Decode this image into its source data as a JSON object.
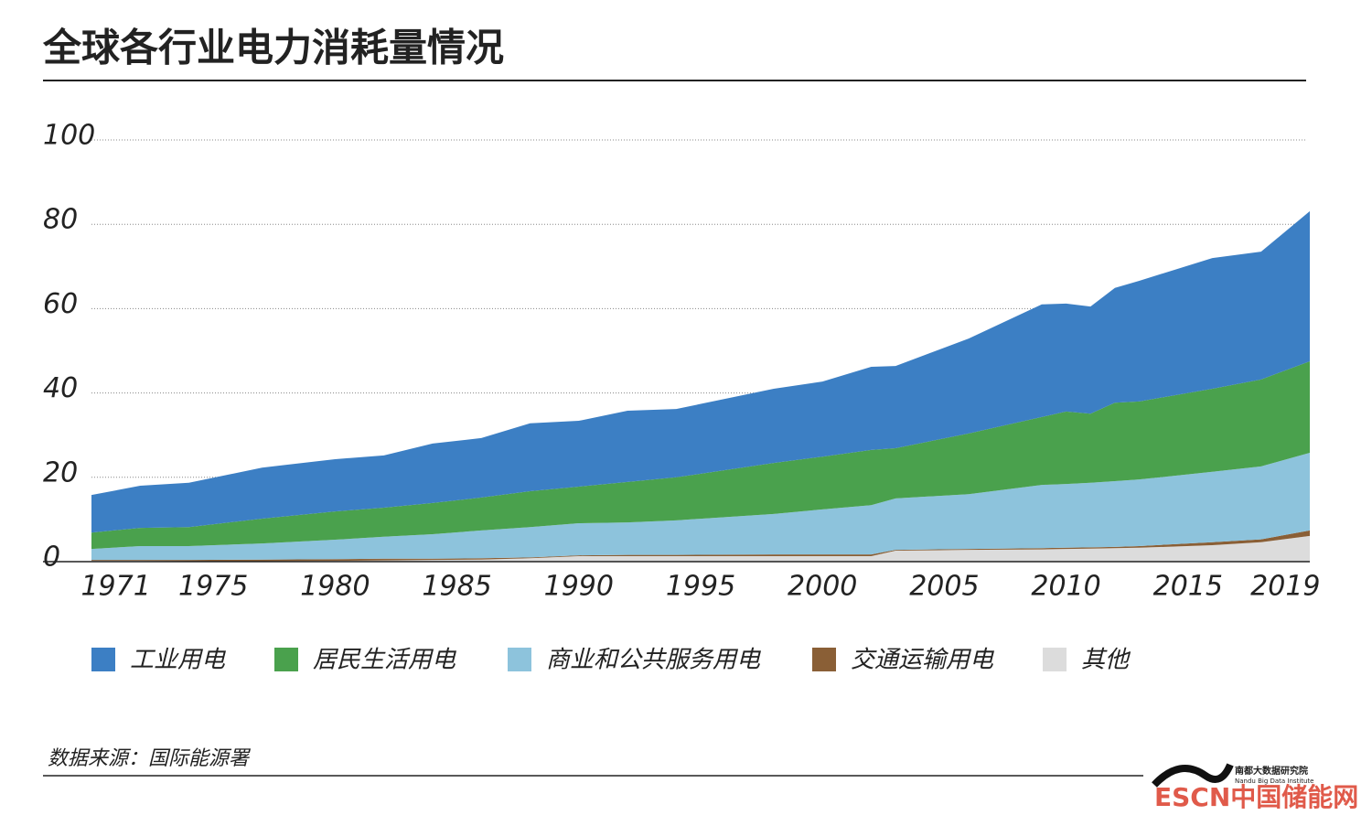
{
  "chart_data": {
    "type": "stacked-area",
    "title": "全球各行业电力消耗量情况",
    "x": [
      1970,
      1972,
      1974,
      1977,
      1980,
      1982,
      1984,
      1986,
      1988,
      1990,
      1992,
      1994,
      1998,
      2000,
      2002,
      2003,
      2006,
      2009,
      2010,
      2011,
      2012,
      2013,
      2016,
      2018,
      2020
    ],
    "series": [
      {
        "name": "工业用电",
        "color": "#3c7fc4",
        "values": [
          8.9,
          10.0,
          10.5,
          12.1,
          12.4,
          12.4,
          14.1,
          14.1,
          16.1,
          15.6,
          16.9,
          16.2,
          17.6,
          17.8,
          19.7,
          19.5,
          22.5,
          26.7,
          25.6,
          25.4,
          27.2,
          28.6,
          31.0,
          30.3,
          35.6
        ]
      },
      {
        "name": "居民生活用电",
        "color": "#4aa14d",
        "values": [
          3.9,
          4.3,
          4.5,
          5.9,
          6.7,
          6.9,
          7.4,
          7.8,
          8.5,
          8.7,
          9.6,
          10.2,
          12.1,
          12.5,
          13.1,
          11.9,
          14.4,
          16.1,
          17.2,
          16.4,
          18.6,
          18.5,
          19.7,
          20.6,
          21.7
        ]
      },
      {
        "name": "商业和公共服务用电",
        "color": "#8dc3dc",
        "values": [
          2.6,
          3.3,
          3.3,
          3.8,
          4.6,
          5.2,
          5.8,
          6.6,
          7.2,
          7.6,
          7.7,
          8.2,
          9.6,
          10.7,
          11.7,
          12.2,
          13.0,
          15.0,
          15.1,
          15.3,
          15.6,
          15.8,
          16.7,
          17.3,
          18.4
        ]
      },
      {
        "name": "交通运输用电",
        "color": "#8a5f36",
        "values": [
          0.2,
          0.2,
          0.3,
          0.4,
          0.4,
          0.4,
          0.3,
          0.3,
          0.2,
          0.2,
          0.3,
          0.3,
          0.4,
          0.4,
          0.4,
          0.2,
          0.2,
          0.3,
          0.3,
          0.3,
          0.3,
          0.4,
          0.7,
          0.7,
          1.3
        ]
      },
      {
        "name": "其他",
        "color": "#dcdcdc",
        "values": [
          0.2,
          0.2,
          0.1,
          0.1,
          0.2,
          0.3,
          0.4,
          0.5,
          0.8,
          1.3,
          1.3,
          1.3,
          1.3,
          1.3,
          1.3,
          2.6,
          2.8,
          2.9,
          3.0,
          3.1,
          3.2,
          3.3,
          3.9,
          4.6,
          6.1
        ]
      }
    ],
    "xlim": [
      1970,
      2020
    ],
    "xticks": [
      1971,
      1975,
      1980,
      1985,
      1990,
      1995,
      2000,
      2005,
      2010,
      2015,
      2019
    ],
    "ylim": [
      0,
      100
    ],
    "yticks": [
      0,
      20,
      40,
      60,
      80,
      100
    ],
    "grid": true,
    "source": "数据来源：国际能源署"
  },
  "footer": {
    "logo": "ESCN中国储能网",
    "institute": "南都大数据研究院",
    "institute_en": "Nandu Big Data Institute"
  }
}
